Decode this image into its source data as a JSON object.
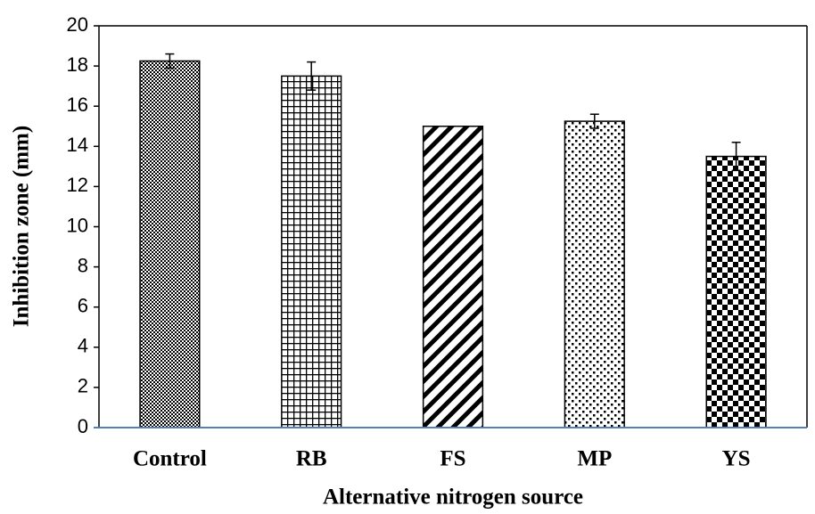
{
  "chart_data": {
    "type": "bar",
    "x_label": "Alternative nitrogen source",
    "y_label": "Inhibition zone (mm)",
    "categories": [
      "Control",
      "RB",
      "FS",
      "MP",
      "YS"
    ],
    "values": [
      18.25,
      17.5,
      15.0,
      15.25,
      13.5
    ],
    "errors": [
      0.35,
      0.7,
      0,
      0.35,
      0.7
    ],
    "ylim": [
      0,
      20
    ],
    "yticks": [
      0,
      2,
      4,
      6,
      8,
      10,
      12,
      14,
      16,
      18,
      20
    ],
    "grid": false
  }
}
